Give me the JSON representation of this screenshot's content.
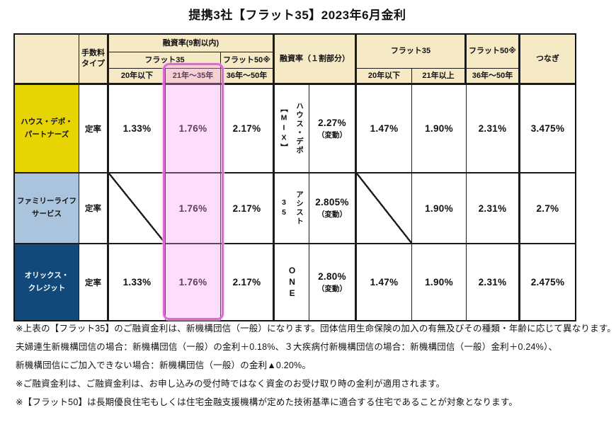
{
  "title": "提携3社【フラット35】2023年6月金利",
  "colors": {
    "header_bg": "#F6EAC6",
    "company_house_depot_bg": "#E6D503",
    "company_family_life_bg": "#ABC4DD",
    "company_orix_bg": "#10497A",
    "highlight_border": "#DE6AD2",
    "highlight_fill": "#F9CDF4",
    "border": "#141414"
  },
  "table": {
    "header": {
      "fee_type": "手数料\nタイプ",
      "loan_ratio_90": "融資率(9割以内)",
      "flat35_left": "フラット35",
      "flat50_left": "フラット50※",
      "term_20_under": "20年以下",
      "term_21_35": "21年～35年",
      "term_36_50": "36年～50年",
      "loan_ratio_10": "融資率（１割部分）",
      "flat35_right": "フラット35",
      "flat50_right": "フラット50※",
      "term_20_under_r": "20年以下",
      "term_21_over": "21年以上",
      "term_36_50_r": "36年～50年",
      "bridge": "つなぎ"
    },
    "rows": [
      {
        "company": "ハウス・デポ・\nパートナーズ",
        "fee_type": "定率",
        "rate_20y": "1.33%",
        "rate_21_35": "1.76%",
        "rate_36_50": "2.17%",
        "product": "ハウス・デポ\n【MIX】",
        "rate_part10": "2.27%",
        "rate_part10_note": "（変動）",
        "r_rate_20y": "1.47%",
        "r_rate_21over": "1.90%",
        "r_rate_36_50": "2.31%",
        "bridge_rate": "3.475%"
      },
      {
        "company": "ファミリーライフ\nサービス",
        "fee_type": "定率",
        "rate_20y": "",
        "rate_21_35": "1.76%",
        "rate_36_50": "2.17%",
        "product": "アシスト\n35",
        "rate_part10": "2.805%",
        "rate_part10_note": "（変動）",
        "r_rate_20y": "",
        "r_rate_21over": "1.90%",
        "r_rate_36_50": "2.31%",
        "bridge_rate": "2.7%"
      },
      {
        "company": "オリックス・\nクレジット",
        "fee_type": "定率",
        "rate_20y": "1.33%",
        "rate_21_35": "1.76%",
        "rate_36_50": "2.17%",
        "product": "ONE",
        "rate_part10": "2.80%",
        "rate_part10_note": "（変動）",
        "r_rate_20y": "1.47%",
        "r_rate_21over": "1.90%",
        "r_rate_36_50": "2.31%",
        "bridge_rate": "2.475%"
      }
    ]
  },
  "notes": [
    "※上表の【フラット35】のご融資金利は、新機構団信（一般）になります。団体信用生命保険の加入の有無及びその種類・年齢に応じて異なります。",
    "夫婦連生新機構団信の場合：新機構団信（一般）の金利＋0.18%、３大疾病付新機構団信の場合：新機構団信（一般）金利＋0.24%）、",
    "新機構団信にご加入できない場合：新機構団信（一般）の金利▲0.20%。",
    "※ご融資金利は、ご融資金利は、お申し込みの受付時ではなく資金のお受け取り時の金利が適用されます。",
    "※【フラット50】は長期優良住宅もしくは住宅金融支援機構が定めた技術基準に適合する住宅であることが対象となります。"
  ]
}
